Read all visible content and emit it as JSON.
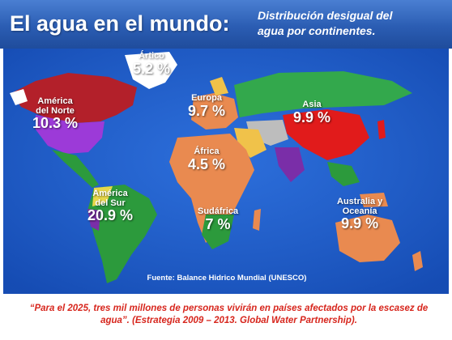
{
  "header": {
    "title": "El agua en el mundo:",
    "subtitle_line1": "Distribución desigual del",
    "subtitle_line2": "agua por continentes."
  },
  "regions": [
    {
      "id": "artico",
      "name": "Ártico",
      "value": "5.2 %"
    },
    {
      "id": "norteamerica",
      "name_line1": "América",
      "name_line2": "del Norte",
      "value": "10.3 %"
    },
    {
      "id": "europa",
      "name": "Europa",
      "value": "9.7 %"
    },
    {
      "id": "asia",
      "name": "Asia",
      "value": "9.9 %"
    },
    {
      "id": "africa",
      "name": "África",
      "value": "4.5 %"
    },
    {
      "id": "sudamerica",
      "name_line1": "América",
      "name_line2": "del Sur",
      "value": "20.9 %"
    },
    {
      "id": "sudafrica",
      "name": "Sudáfrica",
      "value": "7 %"
    },
    {
      "id": "oceania",
      "name_line1": "Australia y",
      "name_line2": "Oceanía",
      "value": "9.9 %"
    }
  ],
  "source": "Fuente: Balance Hidrico Mundial (UNESCO)",
  "quote": "“Para el 2025, tres mil millones de personas vivirán en países afectados por la escasez de agua”.  (Estrategia 2009 – 2013. Global Water Partnership).",
  "colors": {
    "header": "#2b5db3",
    "ocean": "#1f5fd0",
    "north_america": "#b3202a",
    "usa": "#9c3ad8",
    "europe": "#e98a50",
    "asia": "#e11b1b",
    "russia": "#33a84c",
    "africa": "#e98a50",
    "south_america": "#2c9a3c",
    "oceania": "#e98a50",
    "quote": "#d7261d"
  }
}
